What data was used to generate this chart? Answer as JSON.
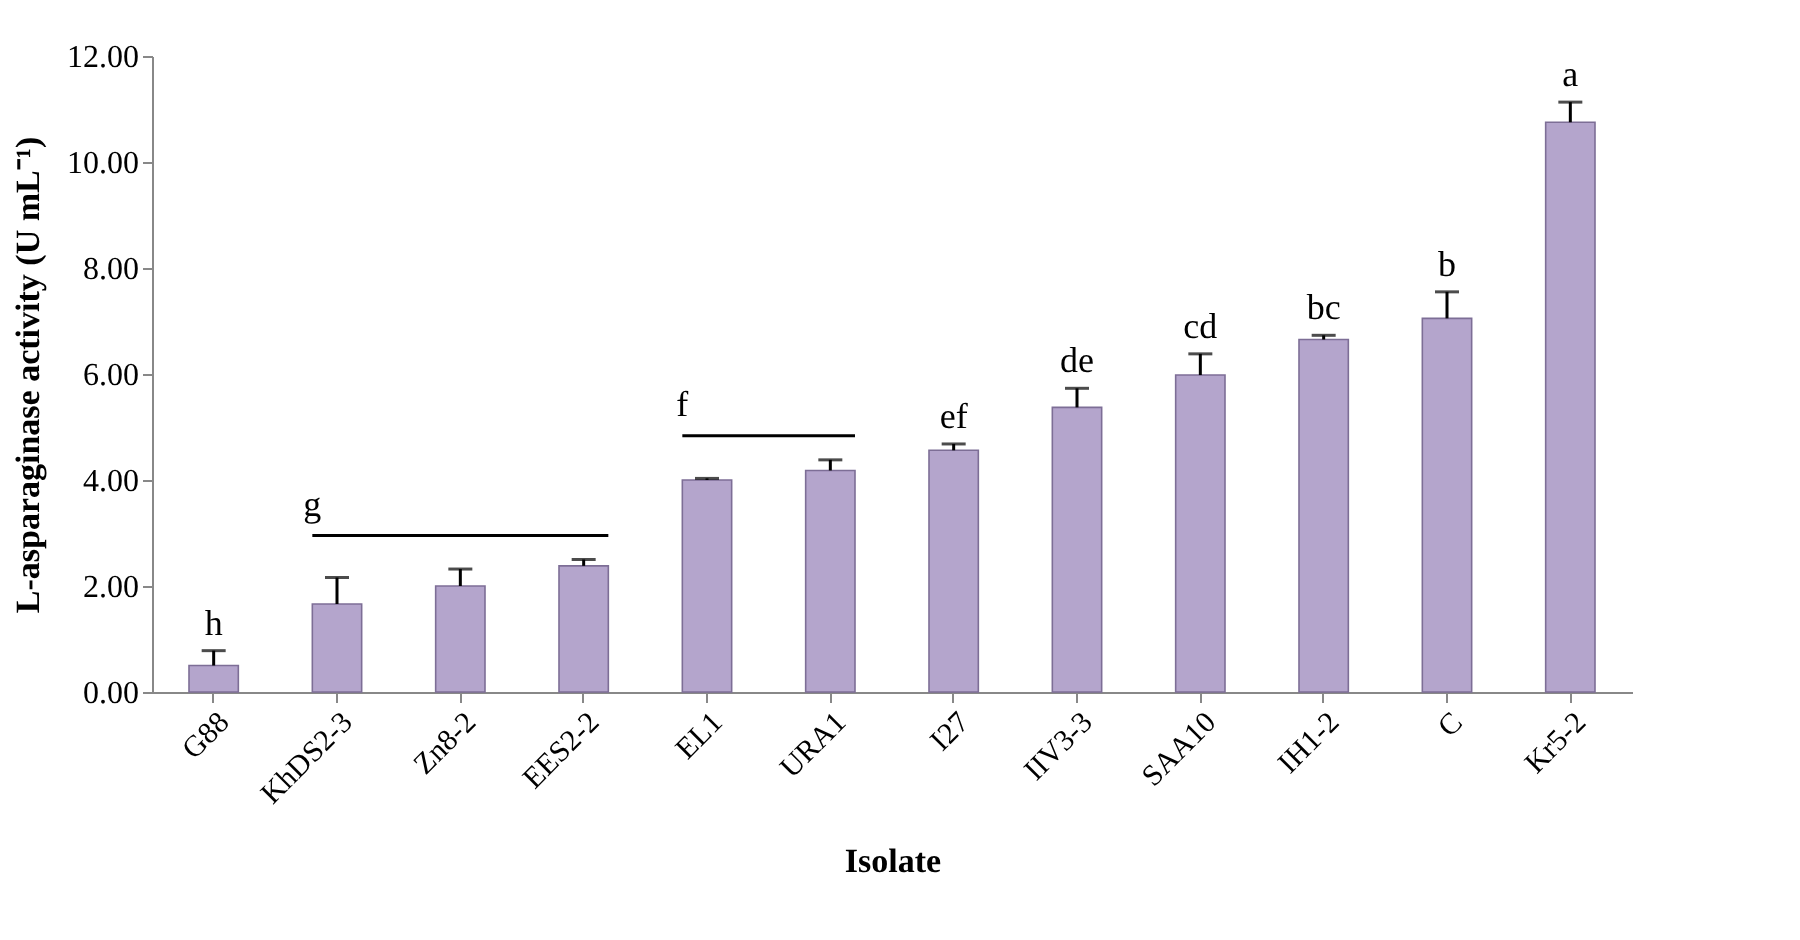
{
  "chart_data": {
    "type": "bar",
    "xlabel": "Isolate",
    "ylabel": "L-asparaginase activity (U mL⁻¹)",
    "categories": [
      "G88",
      "KhDS2-3",
      "Zn8-2",
      "EES2-2",
      "EL1",
      "URA1",
      "I27",
      "IIV3-3",
      "SAA10",
      "IH1-2",
      "C",
      "Kr5-2"
    ],
    "values": [
      0.5,
      1.66,
      2.0,
      2.38,
      4.0,
      4.18,
      4.56,
      5.37,
      5.98,
      6.65,
      7.05,
      10.75
    ],
    "errors": [
      0.28,
      0.5,
      0.32,
      0.12,
      0.03,
      0.2,
      0.12,
      0.36,
      0.4,
      0.08,
      0.5,
      0.38
    ],
    "value_labels": [
      "h",
      null,
      null,
      null,
      null,
      null,
      "ef",
      "de",
      "cd",
      "bc",
      "b",
      "a"
    ],
    "color": "#b4a5cc",
    "ylim": [
      0,
      12
    ],
    "yticks": [
      {
        "value": 0,
        "label": "0.00"
      },
      {
        "value": 2,
        "label": "2.00"
      },
      {
        "value": 4,
        "label": "4.00"
      },
      {
        "value": 6,
        "label": "6.00"
      },
      {
        "value": 8,
        "label": "8.00"
      },
      {
        "value": 10,
        "label": "10.00"
      },
      {
        "value": 12,
        "label": "12.00"
      }
    ],
    "grid": false,
    "annotations": [
      "g",
      "f"
    ]
  }
}
